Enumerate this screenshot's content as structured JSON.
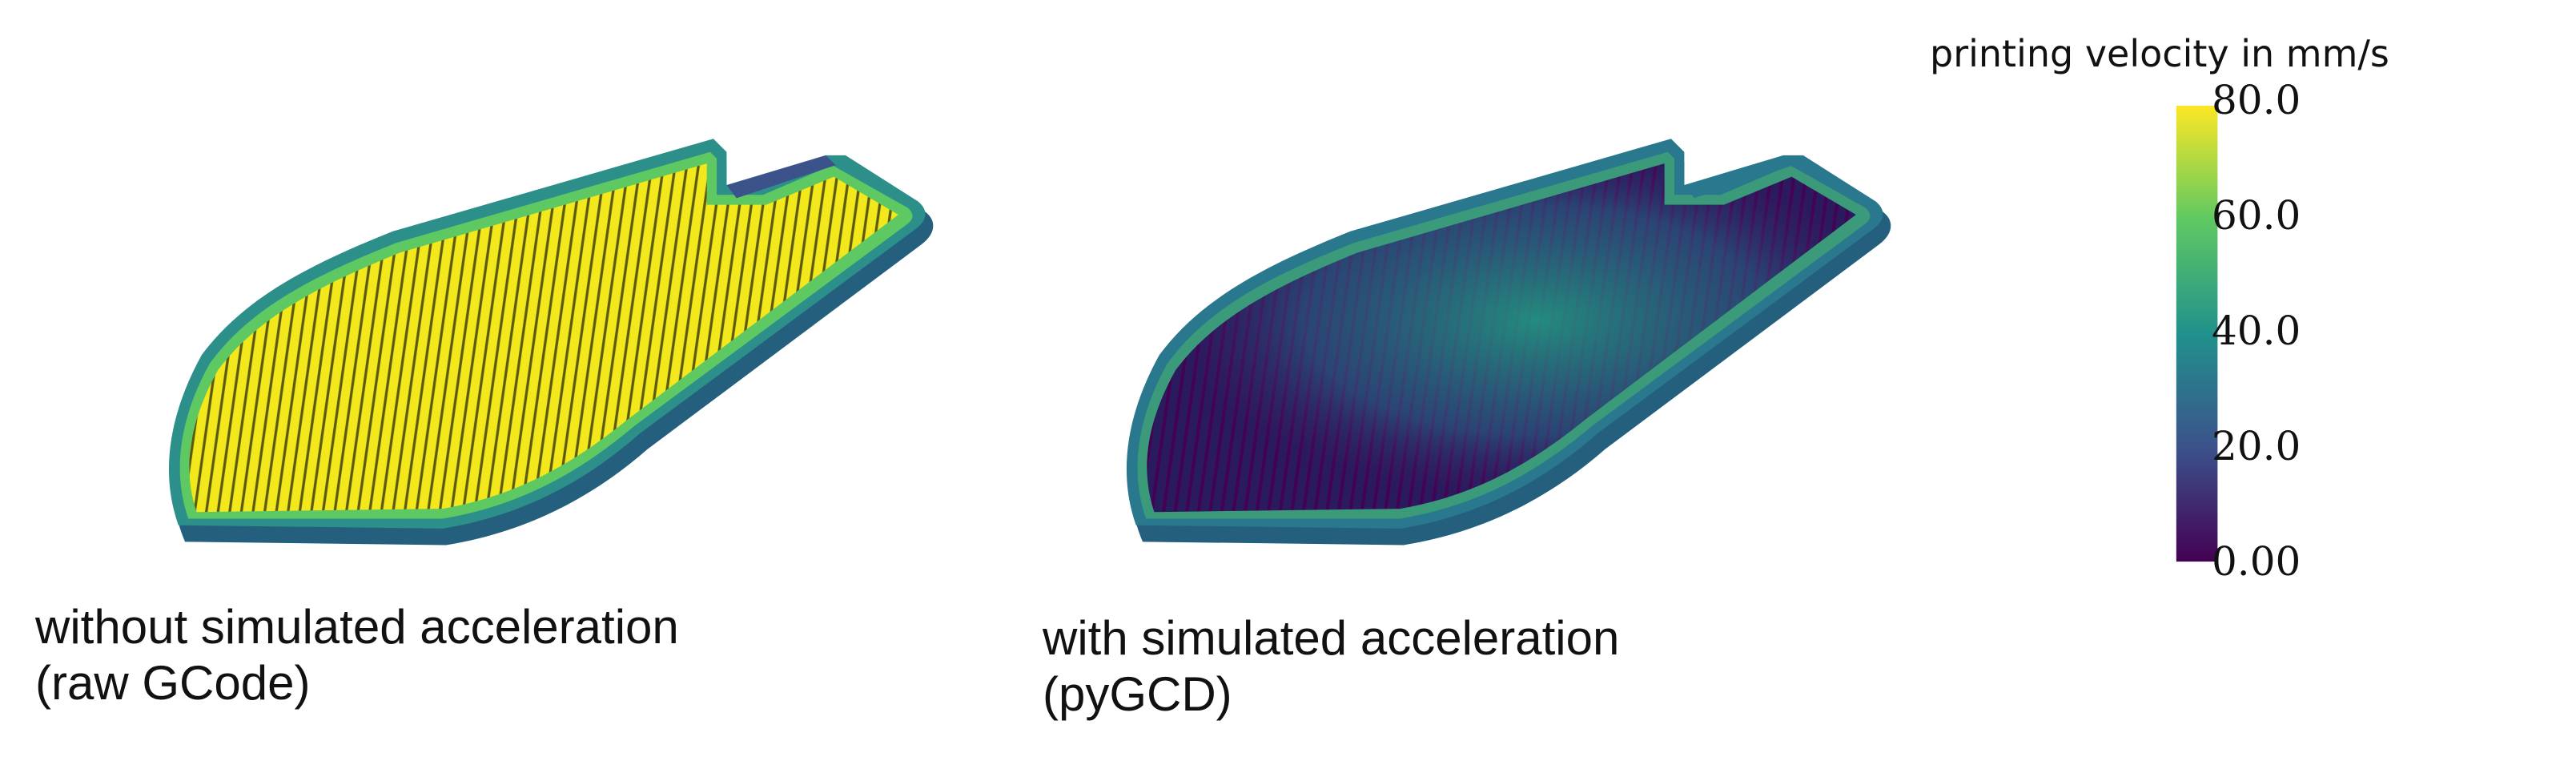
{
  "panels": [
    {
      "caption_line1": "without simulated acceleration",
      "caption_line2": "(raw GCode)"
    },
    {
      "caption_line1": "with simulated acceleration",
      "caption_line2": "(pyGCD)"
    }
  ],
  "colorbar": {
    "title": "printing velocity in mm/s",
    "range": [
      0,
      80
    ],
    "colormap": "viridis",
    "ticks": [
      {
        "value": 80,
        "label": "80.0"
      },
      {
        "value": 60,
        "label": "60.0"
      },
      {
        "value": 40,
        "label": "40.0"
      },
      {
        "value": 20,
        "label": "20.0"
      },
      {
        "value": 0,
        "label": "0.00"
      }
    ],
    "colors": [
      "#440154",
      "#3b528b",
      "#21918c",
      "#5ec962",
      "#fde725"
    ]
  }
}
